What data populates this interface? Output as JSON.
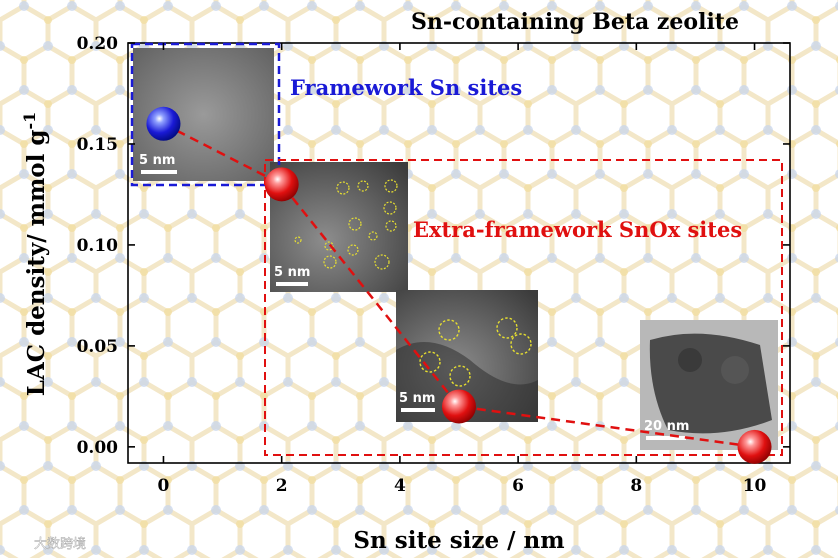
{
  "chart_data": {
    "type": "scatter",
    "title": "Sn-containing Beta zeolite",
    "xlabel": "Sn site size / nm",
    "ylabel": "LAC density/ mmol g",
    "ylabel_sup": "-1",
    "xlim": [
      -0.6,
      10.6
    ],
    "ylim": [
      -0.008,
      0.2
    ],
    "xticks": [
      "0",
      "2",
      "4",
      "6",
      "8",
      "10"
    ],
    "yticks": [
      "0.00",
      "0.05",
      "0.10",
      "0.15",
      "0.20"
    ],
    "xtick_values": [
      0,
      2,
      4,
      6,
      8,
      10
    ],
    "ytick_values": [
      0,
      0.05,
      0.1,
      0.15,
      0.2
    ],
    "series": [
      {
        "color": "#1a1ad6",
        "points": [
          [
            0,
            0.16
          ]
        ]
      },
      {
        "color": "#e01010",
        "points": [
          [
            2,
            0.13
          ],
          [
            5,
            0.02
          ],
          [
            10,
            0.0
          ]
        ]
      }
    ],
    "annotations": {
      "framework": "Framework Sn sites",
      "extra_framework": "Extra-framework SnOx sites",
      "framework_color": "#1a1ad6",
      "extra_color": "#e01010"
    },
    "inset_scale_labels": [
      "5 nm",
      "5 nm",
      "5 nm",
      "20 nm"
    ]
  },
  "watermark": "大数跨境"
}
